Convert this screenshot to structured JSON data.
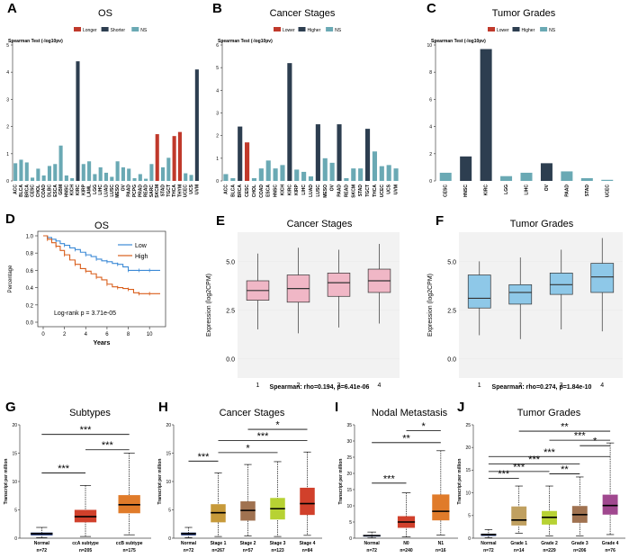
{
  "colors": {
    "dark": "#2d3e50",
    "teal": "#6aa9b4",
    "red": "#c0392b",
    "low_line": "#3c8ad6",
    "high_line": "#d95f1c",
    "pink": "#f0b7c6",
    "blue_box": "#8ec8e8",
    "sub_blue": "#233a80",
    "orange": "#e07b2a",
    "mustard": "#c79a3a",
    "brown": "#a07250",
    "lime": "#b7d233",
    "tan": "#c0a060",
    "red_box": "#d1402b",
    "purple": "#a0488f"
  },
  "chart_data": [
    {
      "id": "A",
      "panel_label": "A",
      "type": "bar",
      "title": "OS",
      "legend": [
        "Longer",
        "Shorter",
        "NS"
      ],
      "ylabel": "Spearman Test (-log10pv)",
      "ylim": [
        0,
        5
      ],
      "yticks": [
        "0",
        "1",
        "2",
        "3",
        "4",
        "5"
      ],
      "categories": [
        "ACC",
        "BLCA",
        "BRCA",
        "CESC",
        "CHOL",
        "COAD",
        "DLBC",
        "ESCA",
        "GBM",
        "HNSC",
        "KICH",
        "KIRC",
        "KIRP",
        "LAML",
        "LGG",
        "LIHC",
        "LUAD",
        "LUSC",
        "MESO",
        "OV",
        "PAAD",
        "PCPG",
        "PRAD",
        "READ",
        "SARC",
        "SKCM",
        "STAD",
        "TGCT",
        "THCA",
        "THYM",
        "UCEC",
        "UCS",
        "UVM"
      ],
      "values": [
        0.65,
        0.78,
        0.68,
        0.12,
        0.45,
        0.2,
        0.55,
        0.62,
        1.3,
        0.2,
        0.1,
        4.4,
        0.62,
        0.72,
        0.25,
        0.5,
        0.3,
        0.15,
        0.72,
        0.5,
        0.45,
        0.1,
        0.25,
        0.08,
        0.62,
        1.72,
        0.5,
        0.85,
        1.65,
        1.8,
        0.28,
        0.22,
        4.1
      ],
      "groups": [
        "ns",
        "ns",
        "ns",
        "ns",
        "ns",
        "ns",
        "ns",
        "ns",
        "ns",
        "ns",
        "ns",
        "dark",
        "ns",
        "ns",
        "ns",
        "ns",
        "ns",
        "ns",
        "ns",
        "ns",
        "ns",
        "ns",
        "ns",
        "ns",
        "ns",
        "red",
        "ns",
        "ns",
        "red",
        "red",
        "ns",
        "ns",
        "dark"
      ],
      "highlight": "KIRC"
    },
    {
      "id": "B",
      "panel_label": "B",
      "type": "bar",
      "title": "Cancer Stages",
      "legend": [
        "Lower",
        "Higher",
        "NS"
      ],
      "ylabel": "Spearman Test (-log10pv)",
      "ylim": [
        0,
        6
      ],
      "yticks": [
        "0",
        "1",
        "2",
        "3",
        "4",
        "5",
        "6"
      ],
      "categories": [
        "ACC",
        "BLCA",
        "BRCA",
        "CESC",
        "CHOL",
        "COAD",
        "ESCA",
        "HNSC",
        "KICH",
        "KIRC",
        "KIRP",
        "LIHC",
        "LUAD",
        "LUSC",
        "MESO",
        "OV",
        "PAAD",
        "READ",
        "SKCM",
        "STAD",
        "TGCT",
        "THCA",
        "UCEC",
        "UCS",
        "UVM"
      ],
      "values": [
        0.3,
        0.12,
        2.4,
        1.7,
        0.12,
        0.55,
        0.9,
        0.55,
        0.7,
        5.2,
        0.5,
        0.4,
        0.2,
        2.5,
        1.0,
        0.8,
        2.5,
        0.12,
        0.55,
        0.55,
        2.3,
        1.3,
        0.65,
        0.7,
        0.55
      ],
      "groups": [
        "ns",
        "ns",
        "dark",
        "red",
        "ns",
        "ns",
        "ns",
        "ns",
        "ns",
        "dark",
        "ns",
        "ns",
        "ns",
        "dark",
        "ns",
        "ns",
        "dark",
        "ns",
        "ns",
        "ns",
        "dark",
        "ns",
        "ns",
        "ns",
        "ns"
      ],
      "highlight": "KIRC"
    },
    {
      "id": "C",
      "panel_label": "C",
      "type": "bar",
      "title": "Tumor Grades",
      "legend": [
        "Lower",
        "Higher",
        "NS"
      ],
      "ylabel": "Spearman Test (-log10pv)",
      "ylim": [
        0,
        10
      ],
      "yticks": [
        "0",
        "2",
        "4",
        "6",
        "8",
        "10"
      ],
      "categories": [
        "CESC",
        "HNSC",
        "KIRC",
        "LGG",
        "LIHC",
        "OV",
        "PAAD",
        "STAD",
        "UCEC"
      ],
      "values": [
        0.6,
        1.8,
        9.7,
        0.35,
        0.6,
        1.3,
        0.7,
        0.2,
        0.08
      ],
      "groups": [
        "ns",
        "dark",
        "dark",
        "ns",
        "ns",
        "dark",
        "ns",
        "ns",
        "ns"
      ],
      "highlight": "KIRC"
    },
    {
      "id": "D",
      "panel_label": "D",
      "type": "line",
      "title": "OS",
      "xlabel": "Years",
      "ylabel": "Percentage",
      "xlim": [
        0,
        11
      ],
      "ylim": [
        0,
        1
      ],
      "xticks": [
        "0",
        "2",
        "4",
        "6",
        "8",
        "10"
      ],
      "yticks": [
        "0.0",
        "0.2",
        "0.4",
        "0.6",
        "0.8",
        "1.0"
      ],
      "series": [
        {
          "name": "Low",
          "x": [
            0,
            0.4,
            0.8,
            1.2,
            1.6,
            2,
            2.5,
            3,
            3.5,
            4,
            4.5,
            5,
            5.5,
            6,
            6.5,
            7,
            7.5,
            8,
            8.5,
            9,
            9.5,
            10,
            11
          ],
          "y": [
            1,
            0.98,
            0.96,
            0.94,
            0.91,
            0.89,
            0.86,
            0.84,
            0.81,
            0.78,
            0.76,
            0.73,
            0.71,
            0.7,
            0.68,
            0.67,
            0.64,
            0.6,
            0.6,
            0.6,
            0.6,
            0.6,
            0.6
          ]
        },
        {
          "name": "High",
          "x": [
            0,
            0.4,
            0.8,
            1.2,
            1.6,
            2,
            2.5,
            3,
            3.5,
            4,
            4.5,
            5,
            5.5,
            6,
            6.5,
            7,
            7.5,
            8,
            8.5,
            9,
            9.5,
            10,
            11
          ],
          "y": [
            1,
            0.96,
            0.92,
            0.88,
            0.83,
            0.78,
            0.72,
            0.67,
            0.62,
            0.59,
            0.56,
            0.52,
            0.49,
            0.44,
            0.41,
            0.4,
            0.39,
            0.38,
            0.34,
            0.33,
            0.33,
            0.33,
            0.33
          ]
        }
      ],
      "annotation": "Log-rank p = 3.71e-05"
    },
    {
      "id": "E",
      "panel_label": "E",
      "type": "box",
      "title": "Cancer Stages",
      "xlabel": "",
      "ylabel": "Expression (log2CPM)",
      "ylim": [
        -1,
        6.5
      ],
      "yticks": [
        "0.0",
        "2.5",
        "5.0"
      ],
      "categories": [
        "1",
        "2",
        "3",
        "4"
      ],
      "boxes": [
        {
          "min": 1.5,
          "q1": 3.0,
          "median": 3.5,
          "q3": 4.0,
          "max": 5.4
        },
        {
          "min": 1.3,
          "q1": 2.9,
          "median": 3.6,
          "q3": 4.3,
          "max": 5.7
        },
        {
          "min": 1.6,
          "q1": 3.2,
          "median": 3.9,
          "q3": 4.4,
          "max": 5.6
        },
        {
          "min": 1.8,
          "q1": 3.4,
          "median": 4.0,
          "q3": 4.6,
          "max": 5.9
        }
      ],
      "caption": "Spearman: rho=0.194, p=6.41e-06"
    },
    {
      "id": "F",
      "panel_label": "F",
      "type": "box",
      "title": "Tumor Grades",
      "xlabel": "",
      "ylabel": "Expression (log2CPM)",
      "ylim": [
        -1,
        6.5
      ],
      "yticks": [
        "0.0",
        "2.5",
        "5.0"
      ],
      "categories": [
        "1",
        "2",
        "3",
        "4"
      ],
      "boxes": [
        {
          "min": 1.2,
          "q1": 2.6,
          "median": 3.1,
          "q3": 4.3,
          "max": 5.0
        },
        {
          "min": 1.0,
          "q1": 2.8,
          "median": 3.4,
          "q3": 3.8,
          "max": 5.2
        },
        {
          "min": 1.5,
          "q1": 3.3,
          "median": 3.8,
          "q3": 4.4,
          "max": 5.6
        },
        {
          "min": 1.4,
          "q1": 3.4,
          "median": 4.2,
          "q3": 4.9,
          "max": 6.2
        }
      ],
      "caption": "Spearman: rho=0.274, p=1.84e-10"
    },
    {
      "id": "G",
      "panel_label": "G",
      "type": "box",
      "title": "Subtypes",
      "ylabel": "Transcript per million",
      "ylim": [
        0,
        20
      ],
      "yticks": [
        "0",
        "5",
        "10",
        "15",
        "20"
      ],
      "categories": [
        "Normal",
        "ccA subtype",
        "ccB subtype"
      ],
      "counts": [
        "n=72",
        "n=205",
        "n=175"
      ],
      "box_colors": [
        "sub_blue",
        "red_box",
        "orange"
      ],
      "boxes": [
        {
          "min": 0.1,
          "q1": 0.5,
          "median": 0.8,
          "q3": 1.0,
          "max": 1.9
        },
        {
          "min": 0.3,
          "q1": 2.8,
          "median": 3.8,
          "q3": 5.0,
          "max": 9.3
        },
        {
          "min": 0.6,
          "q1": 4.4,
          "median": 5.9,
          "q3": 7.6,
          "max": 15.0
        }
      ],
      "sig": [
        {
          "from": 0,
          "to": 1,
          "label": "***",
          "y": 11.5
        },
        {
          "from": 1,
          "to": 2,
          "label": "***",
          "y": 15.6
        },
        {
          "from": 0,
          "to": 2,
          "label": "***",
          "y": 18.3
        }
      ]
    },
    {
      "id": "H",
      "panel_label": "H",
      "type": "box",
      "title": "Cancer Stages",
      "ylabel": "Transcript per million",
      "ylim": [
        0,
        20
      ],
      "yticks": [
        "0",
        "5",
        "10",
        "15",
        "20"
      ],
      "categories": [
        "Normal",
        "Stage 1",
        "Stage 2",
        "Stage 3",
        "Stage 4"
      ],
      "counts": [
        "n=72",
        "n=267",
        "n=57",
        "n=123",
        "n=84"
      ],
      "box_colors": [
        "sub_blue",
        "mustard",
        "brown",
        "lime",
        "red_box"
      ],
      "boxes": [
        {
          "min": 0.1,
          "q1": 0.5,
          "median": 0.8,
          "q3": 1.0,
          "max": 1.9
        },
        {
          "min": 0.3,
          "q1": 2.8,
          "median": 4.5,
          "q3": 6.0,
          "max": 11.5
        },
        {
          "min": 0.4,
          "q1": 3.1,
          "median": 4.9,
          "q3": 6.5,
          "max": 13.0
        },
        {
          "min": 0.3,
          "q1": 3.3,
          "median": 5.2,
          "q3": 7.1,
          "max": 13.5
        },
        {
          "min": 0.5,
          "q1": 4.1,
          "median": 6.1,
          "q3": 8.9,
          "max": 15.2
        }
      ],
      "sig": [
        {
          "from": 0,
          "to": 1,
          "label": "***",
          "y": 13.6
        },
        {
          "from": 1,
          "to": 3,
          "label": "*",
          "y": 15.1
        },
        {
          "from": 1,
          "to": 4,
          "label": "***",
          "y": 17.2
        },
        {
          "from": 2,
          "to": 4,
          "label": "*",
          "y": 19.2
        }
      ]
    },
    {
      "id": "I",
      "panel_label": "I",
      "type": "box",
      "title": "Nodal Metastasis",
      "ylabel": "Transcript per million",
      "ylim": [
        0,
        35
      ],
      "yticks": [
        "0",
        "5",
        "10",
        "15",
        "20",
        "25",
        "30",
        "35"
      ],
      "categories": [
        "Normal",
        "N0",
        "N1"
      ],
      "counts": [
        "n=72",
        "n=240",
        "n=16"
      ],
      "box_colors": [
        "sub_blue",
        "red_box",
        "orange"
      ],
      "boxes": [
        {
          "min": 0.1,
          "q1": 0.5,
          "median": 0.8,
          "q3": 1.0,
          "max": 1.9
        },
        {
          "min": 0.4,
          "q1": 3.2,
          "median": 5.0,
          "q3": 6.8,
          "max": 14.0
        },
        {
          "min": 1.0,
          "q1": 5.5,
          "median": 8.3,
          "q3": 13.5,
          "max": 27.0
        }
      ],
      "sig": [
        {
          "from": 0,
          "to": 1,
          "label": "***",
          "y": 17.0
        },
        {
          "from": 0,
          "to": 2,
          "label": "**",
          "y": 29.5
        },
        {
          "from": 1,
          "to": 2,
          "label": "*",
          "y": 33.2
        }
      ]
    },
    {
      "id": "J",
      "panel_label": "J",
      "type": "box",
      "title": "Tumor Grades",
      "ylabel": "Transcript per million",
      "ylim": [
        0,
        25
      ],
      "yticks": [
        "0",
        "5",
        "10",
        "15",
        "20",
        "25"
      ],
      "categories": [
        "Normal",
        "Grade 1",
        "Grade 2",
        "Grade 3",
        "Grade 4"
      ],
      "counts": [
        "n=72",
        "n=14",
        "n=229",
        "n=206",
        "n=76"
      ],
      "box_colors": [
        "sub_blue",
        "tan",
        "lime",
        "brown",
        "purple"
      ],
      "boxes": [
        {
          "min": 0.1,
          "q1": 0.5,
          "median": 0.8,
          "q3": 1.0,
          "max": 1.9
        },
        {
          "min": 1.1,
          "q1": 2.8,
          "median": 4.0,
          "q3": 7.0,
          "max": 11.5
        },
        {
          "min": 0.5,
          "q1": 3.0,
          "median": 4.6,
          "q3": 6.0,
          "max": 11.5
        },
        {
          "min": 0.5,
          "q1": 3.4,
          "median": 5.2,
          "q3": 7.1,
          "max": 13.5
        },
        {
          "min": 0.8,
          "q1": 5.2,
          "median": 7.2,
          "q3": 9.6,
          "max": 21.0
        }
      ],
      "sig": [
        {
          "from": 0,
          "to": 1,
          "label": "***",
          "y": 13.2
        },
        {
          "from": 0,
          "to": 2,
          "label": "***",
          "y": 14.7
        },
        {
          "from": 2,
          "to": 3,
          "label": "**",
          "y": 14.2
        },
        {
          "from": 0,
          "to": 3,
          "label": "***",
          "y": 16.4
        },
        {
          "from": 0,
          "to": 4,
          "label": "***",
          "y": 18.0
        },
        {
          "from": 3,
          "to": 4,
          "label": "*",
          "y": 20.4
        },
        {
          "from": 2,
          "to": 4,
          "label": "***",
          "y": 21.6
        },
        {
          "from": 1,
          "to": 4,
          "label": "**",
          "y": 23.6
        }
      ]
    }
  ]
}
